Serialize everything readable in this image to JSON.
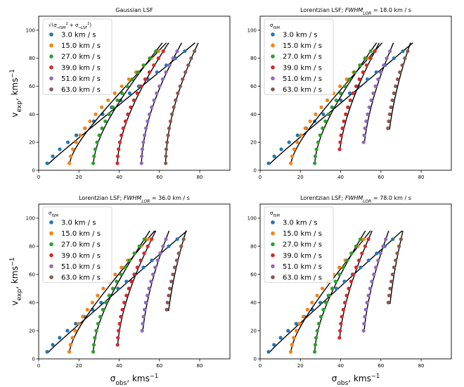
{
  "chart_data": [
    {
      "type": "scatter",
      "title": "Gaussian LSF",
      "xlabel": "",
      "ylabel": "v_exp, kms^-1",
      "xlim": [
        0,
        95
      ],
      "ylim": [
        0,
        110
      ],
      "xticks": [
        "0",
        "20",
        "40",
        "60",
        "80"
      ],
      "yticks": [
        "0",
        "20",
        "40",
        "60",
        "80",
        "100"
      ],
      "legend_title": "sqrt(σ²_ISM + σ²_LSF)",
      "legend_position": "top-left",
      "grid": false,
      "series": [
        {
          "name": "3.0 km / s",
          "color": "#1f77b4",
          "sigma0": 3,
          "x": [
            4.2,
            7.0,
            10.5,
            14.5,
            18.7,
            23.0,
            27.4,
            31.8,
            36.2,
            40.7,
            45.2,
            49.7,
            54.2,
            58.8,
            63.4,
            68.0,
            72.6
          ],
          "y": [
            5,
            10,
            15,
            20,
            25,
            30,
            35,
            40,
            45,
            50,
            55,
            60,
            65,
            70,
            75,
            80,
            85
          ]
        },
        {
          "name": "15.0 km / s",
          "color": "#ff7f0e",
          "sigma0": 15,
          "x": [
            15.2,
            15.9,
            17.0,
            18.6,
            20.6,
            22.9,
            25.5,
            28.3,
            31.3,
            34.5,
            37.8,
            41.3,
            44.8,
            48.4,
            52.0,
            55.8,
            59.5
          ],
          "y": [
            5,
            10,
            15,
            20,
            25,
            30,
            35,
            40,
            45,
            50,
            55,
            60,
            65,
            70,
            75,
            80,
            85
          ]
        },
        {
          "name": "27.0 km / s",
          "color": "#2ca02c",
          "sigma0": 27,
          "x": [
            27.1,
            27.5,
            28.1,
            29.0,
            30.1,
            31.5,
            33.1,
            34.9,
            36.9,
            39.1,
            41.4,
            43.9,
            46.5,
            49.3,
            52.2,
            55.1,
            58.2
          ],
          "y": [
            5,
            10,
            15,
            20,
            25,
            30,
            35,
            40,
            45,
            50,
            55,
            60,
            65,
            70,
            75,
            80,
            85
          ]
        },
        {
          "name": "39.0 km / s",
          "color": "#d62728",
          "sigma0": 39,
          "x": [
            39.1,
            39.3,
            39.7,
            40.3,
            41.1,
            42.0,
            43.1,
            44.3,
            45.7,
            47.3,
            49.0,
            50.9,
            52.9,
            55.0,
            57.2,
            59.5,
            61.9
          ],
          "y": [
            5,
            10,
            15,
            20,
            25,
            30,
            35,
            40,
            45,
            50,
            55,
            60,
            65,
            70,
            75,
            80,
            85
          ]
        },
        {
          "name": "51.0 km / s",
          "color": "#9467bd",
          "sigma0": 51,
          "x": [
            51.1,
            51.2,
            51.5,
            52.0,
            52.6,
            53.3,
            54.1,
            55.0,
            56.1,
            57.3,
            58.6,
            60.0,
            61.6,
            63.2,
            65.0,
            66.8,
            68.8
          ],
          "y": [
            5,
            10,
            15,
            20,
            25,
            30,
            35,
            40,
            45,
            50,
            55,
            60,
            65,
            70,
            75,
            80,
            85
          ]
        },
        {
          "name": "63.0 km / s",
          "color": "#8c564b",
          "sigma0": 63,
          "x": [
            63.1,
            63.2,
            63.4,
            63.8,
            64.3,
            64.8,
            65.5,
            66.2,
            67.1,
            68.0,
            69.1,
            70.3,
            71.5,
            72.9,
            74.3,
            75.8,
            77.4
          ],
          "y": [
            5,
            10,
            15,
            20,
            25,
            30,
            35,
            40,
            45,
            50,
            55,
            60,
            65,
            70,
            75,
            80,
            85
          ]
        }
      ]
    },
    {
      "type": "scatter",
      "title": "Lorentzian LSF; FWHM_LOR = 18.0 km / s",
      "xlabel": "",
      "ylabel": "",
      "xlim": [
        0,
        95
      ],
      "ylim": [
        0,
        110
      ],
      "xticks": [
        "0",
        "20",
        "40",
        "60",
        "80"
      ],
      "yticks": [
        "0",
        "20",
        "40",
        "60",
        "80",
        "100"
      ],
      "legend_title": "σ_ISM",
      "legend_position": "top-left",
      "grid": false,
      "series": [
        {
          "name": "3.0 km / s",
          "color": "#1f77b4",
          "sigma0": 3,
          "x": [
            4.2,
            7.0,
            10.5,
            14.4,
            18.6,
            22.8,
            27.1,
            31.4,
            35.7,
            40.1,
            44.5,
            48.9,
            53.3,
            57.7,
            62.1,
            66.5,
            70.9
          ],
          "y": [
            5,
            10,
            15,
            20,
            25,
            30,
            35,
            40,
            45,
            50,
            55,
            60,
            65,
            70,
            75,
            80,
            85
          ]
        },
        {
          "name": "15.0 km / s",
          "color": "#ff7f0e",
          "sigma0": 15,
          "x": [
            15.2,
            15.9,
            16.9,
            18.4,
            20.3,
            22.4,
            24.9,
            27.6,
            30.4,
            33.4,
            36.5,
            39.7,
            43.0,
            46.4,
            49.9,
            53.4,
            56.9
          ],
          "y": [
            5,
            10,
            15,
            20,
            25,
            30,
            35,
            40,
            45,
            50,
            55,
            60,
            65,
            70,
            75,
            80,
            85
          ]
        },
        {
          "name": "27.0 km / s",
          "color": "#2ca02c",
          "sigma0": 27,
          "x": [
            27.1,
            27.4,
            28.0,
            28.8,
            29.8,
            31.0,
            32.4,
            34.0,
            35.8,
            37.8,
            39.9,
            42.1,
            44.4,
            46.9,
            49.5,
            52.1,
            54.9
          ],
          "y": [
            5,
            10,
            15,
            20,
            25,
            30,
            35,
            40,
            45,
            50,
            55,
            60,
            65,
            70,
            75,
            80,
            85
          ]
        },
        {
          "name": "39.0 km / s",
          "color": "#d62728",
          "sigma0": 39,
          "x": [
            39.5,
            39.8,
            40.2,
            40.9,
            41.6,
            42.5,
            43.6,
            44.8,
            46.2,
            47.7,
            49.3,
            51.1,
            52.9,
            54.9,
            57.0
          ],
          "y": [
            15,
            20,
            25,
            30,
            35,
            40,
            45,
            50,
            55,
            60,
            65,
            70,
            75,
            80,
            85
          ]
        },
        {
          "name": "51.0 km / s",
          "color": "#9467bd",
          "sigma0": 51,
          "x": [
            51.4,
            51.7,
            52.1,
            52.7,
            53.4,
            54.2,
            55.2,
            56.2,
            57.3,
            58.6,
            59.9,
            61.4,
            62.9,
            64.5
          ],
          "y": [
            20,
            25,
            30,
            35,
            40,
            45,
            50,
            55,
            60,
            65,
            70,
            75,
            80,
            85
          ]
        },
        {
          "name": "63.0 km / s",
          "color": "#8c564b",
          "sigma0": 63,
          "x": [
            63.5,
            63.9,
            64.4,
            65.0,
            65.7,
            66.5,
            67.3,
            68.3,
            69.4,
            70.6,
            71.9,
            73.3
          ],
          "y": [
            30,
            35,
            40,
            45,
            50,
            55,
            60,
            65,
            70,
            75,
            80,
            85
          ]
        }
      ]
    },
    {
      "type": "scatter",
      "title": "Lorentzian LSF; FWHM_LOR = 36.0 km / s",
      "xlabel": "σ_obs, kms^-1",
      "ylabel": "v_exp, kms^-1",
      "xlim": [
        0,
        95
      ],
      "ylim": [
        0,
        110
      ],
      "xticks": [
        "0",
        "20",
        "40",
        "60",
        "80"
      ],
      "yticks": [
        "0",
        "20",
        "40",
        "60",
        "80",
        "100"
      ],
      "legend_title": "σ_ISM",
      "legend_position": "top-left",
      "grid": false,
      "series": [
        {
          "name": "3.0 km / s",
          "color": "#1f77b4",
          "sigma0": 3,
          "x": [
            4.2,
            7.0,
            10.4,
            14.3,
            18.4,
            22.6,
            26.8,
            31.0,
            35.2,
            39.4,
            43.6,
            47.8,
            52.0,
            56.2,
            60.4,
            64.6,
            68.8
          ],
          "y": [
            5,
            10,
            15,
            20,
            25,
            30,
            35,
            40,
            45,
            50,
            55,
            60,
            65,
            70,
            75,
            80,
            85
          ]
        },
        {
          "name": "15.0 km / s",
          "color": "#ff7f0e",
          "sigma0": 15,
          "x": [
            15.2,
            15.8,
            16.8,
            18.2,
            19.9,
            21.9,
            24.2,
            26.7,
            29.3,
            32.1,
            35.0,
            38.0,
            41.1,
            44.3,
            47.5,
            50.8,
            54.1
          ],
          "y": [
            5,
            10,
            15,
            20,
            25,
            30,
            35,
            40,
            45,
            50,
            55,
            60,
            65,
            70,
            75,
            80,
            85
          ]
        },
        {
          "name": "27.0 km / s",
          "color": "#2ca02c",
          "sigma0": 27,
          "x": [
            27.1,
            27.4,
            27.9,
            28.6,
            29.5,
            30.6,
            31.9,
            33.4,
            35.0,
            36.8,
            38.7,
            40.8,
            42.9,
            45.2,
            47.6,
            50.0,
            52.5
          ],
          "y": [
            5,
            10,
            15,
            20,
            25,
            30,
            35,
            40,
            45,
            50,
            55,
            60,
            65,
            70,
            75,
            80,
            85
          ]
        },
        {
          "name": "39.0 km / s",
          "color": "#d62728",
          "sigma0": 39,
          "x": [
            39.2,
            39.4,
            39.7,
            40.2,
            40.8,
            41.6,
            42.5,
            43.6,
            44.8,
            46.1,
            47.5,
            49.0,
            50.7,
            52.4,
            54.2,
            56.1
          ],
          "y": [
            10,
            15,
            20,
            25,
            30,
            35,
            40,
            45,
            50,
            55,
            60,
            65,
            70,
            75,
            80,
            85
          ]
        },
        {
          "name": "51.0 km / s",
          "color": "#9467bd",
          "sigma0": 51,
          "x": [
            51.4,
            51.7,
            52.1,
            52.6,
            53.2,
            54.0,
            54.8,
            55.8,
            56.8,
            57.9,
            59.1,
            60.4,
            61.8,
            63.2
          ],
          "y": [
            20,
            25,
            30,
            35,
            40,
            45,
            50,
            55,
            60,
            65,
            70,
            75,
            80,
            85
          ]
        },
        {
          "name": "63.0 km / s",
          "color": "#8c564b",
          "sigma0": 63,
          "x": [
            63.6,
            64.0,
            64.6,
            65.2,
            65.9,
            66.7,
            67.6,
            68.6,
            69.6,
            70.8,
            72.0
          ],
          "y": [
            35,
            40,
            45,
            50,
            55,
            60,
            65,
            70,
            75,
            80,
            85
          ]
        }
      ]
    },
    {
      "type": "scatter",
      "title": "Lorentzian LSF; FWHM_LOR = 78.0 km / s",
      "xlabel": "σ_obs, kms^-1",
      "ylabel": "",
      "xlim": [
        0,
        95
      ],
      "ylim": [
        0,
        110
      ],
      "xticks": [
        "0",
        "20",
        "40",
        "60",
        "80"
      ],
      "yticks": [
        "0",
        "20",
        "40",
        "60",
        "80",
        "100"
      ],
      "legend_title": "σ_ISM",
      "legend_position": "top-left",
      "grid": false,
      "series": [
        {
          "name": "3.0 km / s",
          "color": "#1f77b4",
          "sigma0": 3,
          "x": [
            4.2,
            6.9,
            10.2,
            13.9,
            17.9,
            21.9,
            25.9,
            29.9,
            33.9,
            37.9,
            41.9,
            45.9,
            49.9,
            53.9,
            57.9,
            61.9,
            65.9
          ],
          "y": [
            5,
            10,
            15,
            20,
            25,
            30,
            35,
            40,
            45,
            50,
            55,
            60,
            65,
            70,
            75,
            80,
            85
          ]
        },
        {
          "name": "15.0 km / s",
          "color": "#ff7f0e",
          "sigma0": 15,
          "x": [
            15.2,
            15.8,
            16.7,
            18.0,
            19.5,
            21.4,
            23.5,
            25.8,
            28.3,
            30.9,
            33.6,
            36.4,
            39.3,
            42.3,
            45.3,
            48.4,
            51.5
          ],
          "y": [
            5,
            10,
            15,
            20,
            25,
            30,
            35,
            40,
            45,
            50,
            55,
            60,
            65,
            70,
            75,
            80,
            85
          ]
        },
        {
          "name": "27.0 km / s",
          "color": "#2ca02c",
          "sigma0": 27,
          "x": [
            27.1,
            27.4,
            27.8,
            28.4,
            29.2,
            30.2,
            31.4,
            32.7,
            34.2,
            35.8,
            37.5,
            39.4,
            41.3,
            43.3,
            45.4,
            47.6,
            49.8
          ],
          "y": [
            5,
            10,
            15,
            20,
            25,
            30,
            35,
            40,
            45,
            50,
            55,
            60,
            65,
            70,
            75,
            80,
            85
          ]
        },
        {
          "name": "39.0 km / s",
          "color": "#d62728",
          "sigma0": 39,
          "x": [
            39.4,
            39.7,
            40.1,
            40.6,
            41.3,
            42.1,
            43.0,
            44.0,
            45.2,
            46.4,
            47.7,
            49.1,
            50.6,
            52.2,
            53.8
          ],
          "y": [
            15,
            20,
            25,
            30,
            35,
            40,
            45,
            50,
            55,
            60,
            65,
            70,
            75,
            80,
            85
          ]
        },
        {
          "name": "51.0 km / s",
          "color": "#9467bd",
          "sigma0": 51,
          "x": [
            51.4,
            51.6,
            52.0,
            52.5,
            53.1,
            53.8,
            54.6,
            55.5,
            56.5,
            57.5,
            58.6,
            59.8,
            61.1,
            62.4
          ],
          "y": [
            20,
            25,
            30,
            35,
            40,
            45,
            50,
            55,
            60,
            65,
            70,
            75,
            80,
            85
          ]
        },
        {
          "name": "63.0 km / s",
          "color": "#8c564b",
          "sigma0": 63,
          "x": [
            63.7,
            64.1,
            64.6,
            65.2,
            65.8,
            66.5,
            67.3,
            68.1,
            69.0,
            70.0
          ],
          "y": [
            40,
            45,
            50,
            55,
            60,
            65,
            70,
            75,
            80,
            85
          ]
        }
      ]
    }
  ]
}
